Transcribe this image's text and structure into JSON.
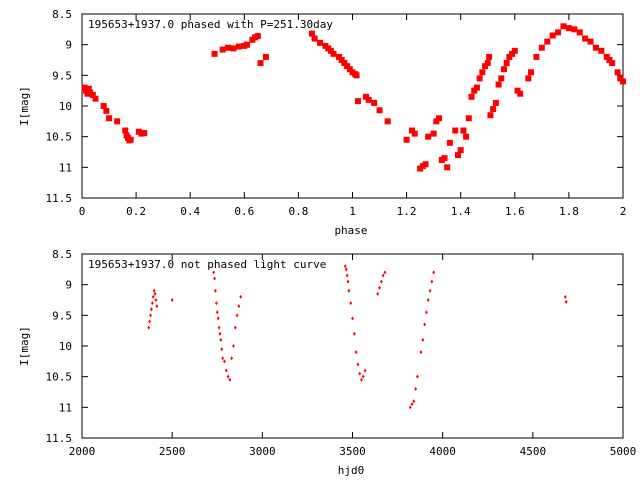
{
  "colors": {
    "points": "#ff0000",
    "axes": "#000000",
    "background": "#ffffff"
  },
  "chart_data": [
    {
      "type": "scatter",
      "title": "195653+1937.0 phased with P=251.30day",
      "xlabel": "phase",
      "ylabel": "I[mag]",
      "xlim": [
        0,
        2
      ],
      "ylim": [
        11.5,
        8.5
      ],
      "y_inverted": true,
      "x_ticks": [
        "0",
        "0.2",
        "0.4",
        "0.6",
        "0.8",
        "1",
        "1.2",
        "1.4",
        "1.6",
        "1.8",
        "2"
      ],
      "y_ticks": [
        "8.5",
        "9",
        "9.5",
        "10",
        "10.5",
        "11",
        "11.5"
      ],
      "marker": "square",
      "grid": false,
      "x": [
        0.01,
        0.015,
        0.02,
        0.025,
        0.03,
        0.04,
        0.05,
        0.08,
        0.09,
        0.1,
        0.13,
        0.16,
        0.165,
        0.17,
        0.175,
        0.18,
        0.21,
        0.22,
        0.23,
        0.49,
        0.52,
        0.54,
        0.56,
        0.58,
        0.6,
        0.61,
        0.63,
        0.64,
        0.65,
        0.66,
        0.68,
        0.85,
        0.86,
        0.88,
        0.9,
        0.91,
        0.92,
        0.93,
        0.95,
        0.96,
        0.97,
        0.98,
        0.99,
        1.0,
        1.01,
        1.015,
        1.02,
        1.05,
        1.06,
        1.08,
        1.1,
        1.13,
        1.2,
        1.22,
        1.23,
        1.25,
        1.26,
        1.27,
        1.28,
        1.3,
        1.31,
        1.32,
        1.33,
        1.34,
        1.35,
        1.36,
        1.38,
        1.39,
        1.4,
        1.41,
        1.42,
        1.43,
        1.44,
        1.45,
        1.46,
        1.47,
        1.48,
        1.49,
        1.5,
        1.505,
        1.51,
        1.52,
        1.53,
        1.54,
        1.55,
        1.56,
        1.57,
        1.58,
        1.59,
        1.6,
        1.61,
        1.62,
        1.65,
        1.66,
        1.68,
        1.7,
        1.72,
        1.74,
        1.76,
        1.78,
        1.8,
        1.82,
        1.84,
        1.86,
        1.88,
        1.9,
        1.92,
        1.94,
        1.95,
        1.96,
        1.98,
        1.99,
        2.0
      ],
      "y": [
        9.7,
        9.75,
        9.8,
        9.72,
        9.78,
        9.82,
        9.88,
        10.0,
        10.08,
        10.2,
        10.25,
        10.4,
        10.48,
        10.52,
        10.56,
        10.55,
        10.42,
        10.45,
        10.44,
        9.15,
        9.08,
        9.05,
        9.06,
        9.03,
        9.02,
        9.0,
        8.92,
        8.88,
        8.86,
        9.3,
        9.2,
        8.82,
        8.9,
        8.97,
        9.02,
        9.06,
        9.1,
        9.15,
        9.2,
        9.25,
        9.3,
        9.35,
        9.4,
        9.45,
        9.48,
        9.5,
        9.92,
        9.85,
        9.9,
        9.95,
        10.07,
        10.25,
        10.55,
        10.4,
        10.45,
        11.02,
        10.98,
        10.95,
        10.5,
        10.45,
        10.25,
        10.2,
        10.88,
        10.85,
        11.0,
        10.6,
        10.4,
        10.8,
        10.72,
        10.4,
        10.5,
        10.2,
        9.85,
        9.75,
        9.7,
        9.55,
        9.45,
        9.35,
        9.3,
        9.2,
        10.15,
        10.05,
        9.95,
        9.65,
        9.55,
        9.4,
        9.3,
        9.2,
        9.15,
        9.1,
        9.75,
        9.8,
        9.55,
        9.45,
        9.2,
        9.05,
        8.95,
        8.85,
        8.8,
        8.7,
        8.73,
        8.75,
        8.8,
        8.9,
        8.95,
        9.05,
        9.1,
        9.2,
        9.25,
        9.3,
        9.45,
        9.55,
        9.6
      ],
      "point_size": 6
    },
    {
      "type": "scatter",
      "title": "195653+1937.0 not phased light curve",
      "xlabel": "hjd0",
      "ylabel": "I[mag]",
      "xlim": [
        2000,
        5000
      ],
      "ylim": [
        11.5,
        8.5
      ],
      "y_inverted": true,
      "x_ticks": [
        "2000",
        "2500",
        "3000",
        "3500",
        "4000",
        "4500",
        "5000"
      ],
      "y_ticks": [
        "8.5",
        "9",
        "9.5",
        "10",
        "10.5",
        "11",
        "11.5"
      ],
      "marker": "diamond",
      "grid": false,
      "x": [
        2370,
        2375,
        2380,
        2385,
        2390,
        2395,
        2400,
        2405,
        2410,
        2415,
        2500,
        2730,
        2735,
        2740,
        2745,
        2750,
        2755,
        2760,
        2765,
        2770,
        2775,
        2780,
        2790,
        2800,
        2810,
        2820,
        2830,
        2840,
        2850,
        2860,
        2870,
        2880,
        3460,
        3465,
        3470,
        3475,
        3480,
        3490,
        3500,
        3510,
        3520,
        3530,
        3540,
        3550,
        3560,
        3570,
        3640,
        3650,
        3660,
        3670,
        3680,
        3820,
        3830,
        3840,
        3850,
        3860,
        3880,
        3890,
        3900,
        3910,
        3920,
        3930,
        3940,
        3950,
        4680,
        4685
      ],
      "y": [
        9.7,
        9.6,
        9.5,
        9.4,
        9.3,
        9.2,
        9.1,
        9.15,
        9.25,
        9.35,
        9.25,
        8.8,
        8.9,
        9.1,
        9.3,
        9.45,
        9.55,
        9.7,
        9.8,
        9.9,
        10.05,
        10.2,
        10.25,
        10.4,
        10.5,
        10.55,
        10.2,
        10.0,
        9.7,
        9.5,
        9.35,
        9.2,
        8.7,
        8.75,
        8.85,
        8.95,
        9.1,
        9.3,
        9.55,
        9.8,
        10.1,
        10.3,
        10.45,
        10.55,
        10.5,
        10.4,
        9.15,
        9.05,
        8.95,
        8.85,
        8.8,
        11.0,
        10.95,
        10.9,
        10.7,
        10.5,
        10.1,
        9.9,
        9.65,
        9.45,
        9.25,
        9.1,
        8.95,
        8.8,
        9.2,
        9.28
      ],
      "point_size": 4
    }
  ]
}
